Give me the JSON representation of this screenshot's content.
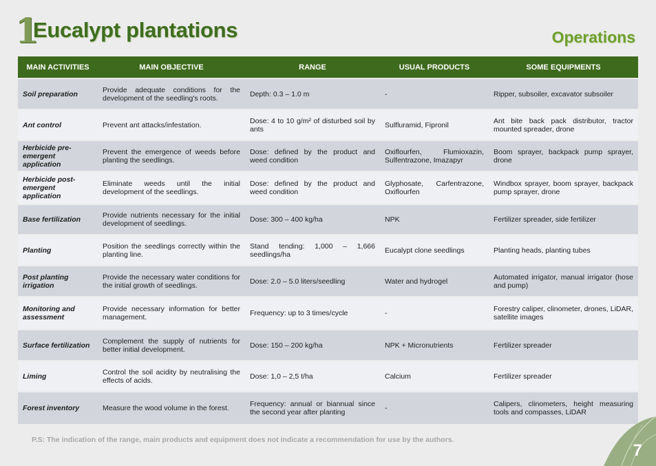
{
  "header": {
    "number": "1",
    "title": "Eucalypt plantations",
    "section": "Operations"
  },
  "table": {
    "headers": [
      "MAIN ACTIVITIES",
      "MAIN OBJECTIVE",
      "RANGE",
      "USUAL PRODUCTS",
      "SOME EQUIPMENTS"
    ],
    "rows": [
      [
        "Soil preparation",
        "Provide adequate conditions for the development of the seedling's roots.",
        "Depth: 0.3 – 1.0 m",
        "-",
        "Ripper, subsoiler, excavator subsoiler"
      ],
      [
        "Ant control",
        "Prevent ant attacks/infestation.",
        "Dose: 4 to 10 g/m² of disturbed soil by ants",
        "Sulfluramid, Fipronil",
        "Ant bite back pack distributor, tractor mounted spreader, drone"
      ],
      [
        "Herbicide pre-emergent application",
        "Prevent the emergence of weeds before planting the seedlings.",
        "Dose: defined by the product and weed condition",
        "Oxiflourfen, Flumioxazin, Sulfentrazone, Imazapyr",
        "Boom sprayer, backpack pump sprayer, drone"
      ],
      [
        "Herbicide post-emergent application",
        "Eliminate weeds until the initial development of the seedlings.",
        "Dose: defined by the product and weed condition",
        "Glyphosate, Carfentrazone, Oxiflourfen",
        "Windbox sprayer, boom sprayer, backpack pump sprayer, drone"
      ],
      [
        "Base fertilization",
        "Provide nutrients necessary for the initial development of seedlings.",
        "Dose: 300 – 400 kg/ha",
        "NPK",
        "Fertilizer spreader, side fertilizer"
      ],
      [
        "Planting",
        "Position the seedlings correctly within the planting line.",
        "Stand tending: 1,000 – 1,666 seedlings/ha",
        "Eucalypt clone seedlings",
        "Planting heads, planting tubes"
      ],
      [
        "Post planting irrigation",
        "Provide the necessary water conditions for the initial growth of seedlings.",
        "Dose: 2.0 – 5.0 liters/seedling",
        "Water and hydrogel",
        "Automated irrigator, manual irrigator (hose and pump)"
      ],
      [
        "Monitoring and assessment",
        "Provide necessary information for better management.",
        "Frequency: up to 3 times/cycle",
        "-",
        "Forestry caliper, clinometer, drones, LiDAR, satellite images"
      ],
      [
        "Surface fertilization",
        "Complement the supply of nutrients for better initial development.",
        "Dose: 150 – 200 kg/ha",
        "NPK + Micronutrients",
        "Fertilizer spreader"
      ],
      [
        "Liming",
        "Control the soil acidity by neutralising the effects of acids.",
        "Dose: 1,0 – 2,5 t/ha",
        "Calcium",
        "Fertilizer spreader"
      ],
      [
        "Forest inventory",
        "Measure the wood volume in the forest.",
        "Frequency: annual or biannual since the second year after planting",
        "-",
        "Calipers, clinometers, height measuring tools and compasses, LiDAR"
      ]
    ]
  },
  "footnote": "P.S: The indication of the range, main products and equipment does not indicate a recommendation for use by the authors.",
  "page_number": "7",
  "colors": {
    "header_bg": "#3d6a1c",
    "title_green": "#3f6d1f",
    "section_green": "#6e9f2c",
    "row_dark": "#d2d6dc",
    "row_light": "#eef0f3"
  }
}
